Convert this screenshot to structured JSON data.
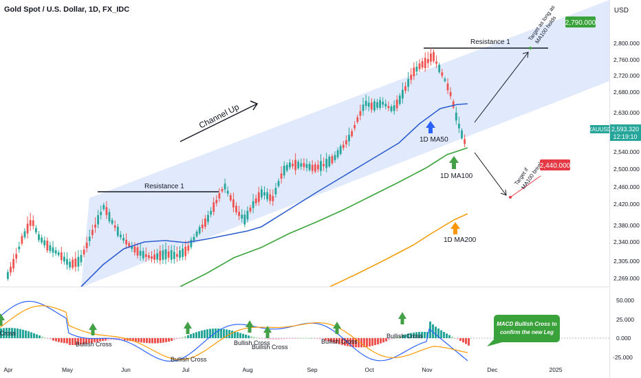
{
  "header": {
    "symbol_title": "Gold Spot / U.S. Dollar, 1D, FX_IDC",
    "currency": "USD"
  },
  "price_scale": {
    "ticks": [
      "2,800.000",
      "2,760.000",
      "2,720.000",
      "2,680.000",
      "2,630.000",
      "2,590.000",
      "2,540.000",
      "2,500.000",
      "2,460.000",
      "2,420.000",
      "2,380.000",
      "2,340.000",
      "2,305.000",
      "2,269.000"
    ],
    "last_symbol": "XAUUSD",
    "last_price": "2,593.320",
    "countdown": "12:19:10"
  },
  "macd_scale": {
    "ticks": [
      "50.000",
      "25.000",
      "0.000",
      "-25.000"
    ]
  },
  "time_axis": {
    "labels": [
      "Apr",
      "May",
      "Jun",
      "Jul",
      "Aug",
      "Sep",
      "Oct",
      "Nov",
      "Dec",
      "2025"
    ]
  },
  "annotations": {
    "channel_label": "Channel Up",
    "resistance_left": "Resistance 1",
    "resistance_right": "Resistance 1",
    "ma50_label": "1D MA50",
    "ma100_label": "1D MA100",
    "ma200_label": "1D MA200",
    "target_up_text_line1": "Target as long as",
    "target_up_text_line2": "MA100 holds",
    "target_up_value": "2,790.000",
    "target_down_text_line1": "Target if",
    "target_down_text_line2": "MA100 breaks",
    "target_down_value": "2,440.000",
    "macd_note": "MACD Bullish Cross to confirm the new Leg",
    "bullish_cross": [
      "h Cross",
      "Bullish Cross",
      "Bullish Cross",
      "Bullish Cross",
      "Bullish Cross",
      "Bullish Cross",
      "Bullish Cross"
    ]
  },
  "colors": {
    "channel_fill": "#dbe6fb",
    "up_candle": "#26a69a",
    "down_candle": "#ef5350",
    "ma50": "#2b5ccf",
    "ma100": "#3aa23a",
    "ma200": "#f59e0b",
    "macd_line": "#2962ff",
    "signal_line": "#ff9800",
    "target_up_badge": "#3aa23a",
    "target_down_badge": "#e53945",
    "last_price_badge": "#26a69a",
    "arrow_green": "#43a047",
    "arrow_blue": "#2962ff",
    "arrow_orange": "#ff9800"
  },
  "chart_data": {
    "type": "line",
    "title": "Gold Spot / U.S. Dollar, 1D, FX_IDC",
    "x": [
      "Apr",
      "May",
      "Jun",
      "Jul",
      "Aug",
      "Sep",
      "Oct",
      "Nov",
      "Dec",
      "2025"
    ],
    "ylim": [
      2255,
      2830
    ],
    "series": [
      {
        "name": "1D MA50",
        "points": [
          [
            "May",
            2255
          ],
          [
            "Jun",
            2345
          ],
          [
            "Jul",
            2338
          ],
          [
            "Aug",
            2365
          ],
          [
            "Sep",
            2460
          ],
          [
            "Oct",
            2560
          ],
          [
            "Nov",
            2640
          ],
          [
            "mid-Nov",
            2655
          ]
        ]
      },
      {
        "name": "1D MA100",
        "points": [
          [
            "Jun",
            2255
          ],
          [
            "Jul",
            2295
          ],
          [
            "Aug",
            2355
          ],
          [
            "Sep",
            2420
          ],
          [
            "Oct",
            2490
          ],
          [
            "Nov",
            2520
          ],
          [
            "mid-Nov",
            2550
          ]
        ]
      },
      {
        "name": "1D MA200",
        "points": [
          [
            "Sep",
            2255
          ],
          [
            "Oct",
            2300
          ],
          [
            "Nov",
            2365
          ],
          [
            "mid-Nov",
            2405
          ]
        ]
      }
    ],
    "last_price": 2593.32,
    "resistance": 2790,
    "targets": {
      "up": 2790.0,
      "down": 2440.0
    },
    "macd_ylim": [
      -30,
      60
    ]
  }
}
